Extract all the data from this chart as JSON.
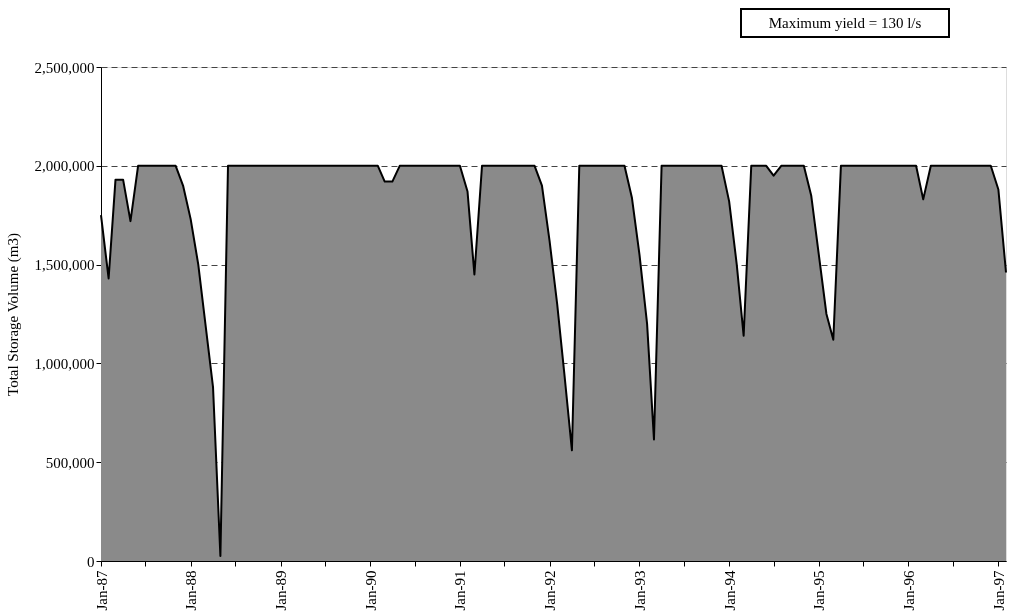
{
  "chart_data": {
    "type": "area",
    "ylabel": "Total Storage Volume (m3)",
    "annotations": [
      "Maximum yield = 130 l/s"
    ],
    "x": [
      "1987-01",
      "1987-02",
      "1987-03",
      "1987-04",
      "1987-05",
      "1987-06",
      "1987-07",
      "1987-08",
      "1987-09",
      "1987-10",
      "1987-11",
      "1987-12",
      "1988-01",
      "1988-02",
      "1988-03",
      "1988-04",
      "1988-05",
      "1988-06",
      "1988-07",
      "1988-08",
      "1988-09",
      "1988-10",
      "1988-11",
      "1988-12",
      "1989-01",
      "1989-02",
      "1989-03",
      "1989-04",
      "1989-05",
      "1989-06",
      "1989-07",
      "1989-08",
      "1989-09",
      "1989-10",
      "1989-11",
      "1989-12",
      "1990-01",
      "1990-02",
      "1990-03",
      "1990-04",
      "1990-05",
      "1990-06",
      "1990-07",
      "1990-08",
      "1990-09",
      "1990-10",
      "1990-11",
      "1990-12",
      "1991-01",
      "1991-02",
      "1991-03",
      "1991-04",
      "1991-05",
      "1991-06",
      "1991-07",
      "1991-08",
      "1991-09",
      "1991-10",
      "1991-11",
      "1991-12",
      "1992-01",
      "1992-02",
      "1992-03",
      "1992-04",
      "1992-05",
      "1992-06",
      "1992-07",
      "1992-08",
      "1992-09",
      "1992-10",
      "1992-11",
      "1992-12",
      "1993-01",
      "1993-02",
      "1993-03",
      "1993-04",
      "1993-05",
      "1993-06",
      "1993-07",
      "1993-08",
      "1993-09",
      "1993-10",
      "1993-11",
      "1993-12",
      "1994-01",
      "1994-02",
      "1994-03",
      "1994-04",
      "1994-05",
      "1994-06",
      "1994-07",
      "1994-08",
      "1994-09",
      "1994-10",
      "1994-11",
      "1994-12",
      "1995-01",
      "1995-02",
      "1995-03",
      "1995-04",
      "1995-05",
      "1995-06",
      "1995-07",
      "1995-08",
      "1995-09",
      "1995-10",
      "1995-11",
      "1995-12",
      "1996-01",
      "1996-02",
      "1996-03",
      "1996-04",
      "1996-05",
      "1996-06",
      "1996-07",
      "1996-08",
      "1996-09",
      "1996-10",
      "1996-11",
      "1996-12",
      "1997-01",
      "1997-02"
    ],
    "series": [
      {
        "color": "#8a8a8a",
        "values": [
          1750000,
          1430000,
          1930000,
          1930000,
          1720000,
          2000000,
          2000000,
          2000000,
          2000000,
          2000000,
          2000000,
          1900000,
          1730000,
          1500000,
          1200000,
          880000,
          25000,
          2000000,
          2000000,
          2000000,
          2000000,
          2000000,
          2000000,
          2000000,
          2000000,
          2000000,
          2000000,
          2000000,
          2000000,
          2000000,
          2000000,
          2000000,
          2000000,
          2000000,
          2000000,
          2000000,
          2000000,
          2000000,
          1920000,
          1920000,
          2000000,
          2000000,
          2000000,
          2000000,
          2000000,
          2000000,
          2000000,
          2000000,
          2000000,
          1870000,
          1450000,
          2000000,
          2000000,
          2000000,
          2000000,
          2000000,
          2000000,
          2000000,
          2000000,
          1900000,
          1620000,
          1300000,
          950000,
          560000,
          2000000,
          2000000,
          2000000,
          2000000,
          2000000,
          2000000,
          2000000,
          1840000,
          1550000,
          1200000,
          615000,
          2000000,
          2000000,
          2000000,
          2000000,
          2000000,
          2000000,
          2000000,
          2000000,
          2000000,
          1820000,
          1500000,
          1140000,
          2000000,
          2000000,
          2000000,
          1950000,
          2000000,
          2000000,
          2000000,
          2000000,
          1850000,
          1550000,
          1250000,
          1120000,
          2000000,
          2000000,
          2000000,
          2000000,
          2000000,
          2000000,
          2000000,
          2000000,
          2000000,
          2000000,
          2000000,
          1830000,
          2000000,
          2000000,
          2000000,
          2000000,
          2000000,
          2000000,
          2000000,
          2000000,
          2000000,
          1880000,
          1460000
        ]
      }
    ],
    "xlim": [
      "1987-01",
      "1997-02"
    ],
    "xticks": [
      {
        "value": "1987-01",
        "label": "Jan-87"
      },
      {
        "value": "1987-07",
        "label": null
      },
      {
        "value": "1988-01",
        "label": "Jan-88"
      },
      {
        "value": "1988-07",
        "label": null
      },
      {
        "value": "1989-01",
        "label": "Jan-89"
      },
      {
        "value": "1989-07",
        "label": null
      },
      {
        "value": "1990-01",
        "label": "Jan-90"
      },
      {
        "value": "1990-07",
        "label": null
      },
      {
        "value": "1991-01",
        "label": "Jan-91"
      },
      {
        "value": "1991-07",
        "label": null
      },
      {
        "value": "1992-01",
        "label": "Jan-92"
      },
      {
        "value": "1992-07",
        "label": null
      },
      {
        "value": "1993-01",
        "label": "Jan-93"
      },
      {
        "value": "1993-07",
        "label": null
      },
      {
        "value": "1994-01",
        "label": "Jan-94"
      },
      {
        "value": "1994-07",
        "label": null
      },
      {
        "value": "1995-01",
        "label": "Jan-95"
      },
      {
        "value": "1995-07",
        "label": null
      },
      {
        "value": "1996-01",
        "label": "Jan-96"
      },
      {
        "value": "1996-07",
        "label": null
      },
      {
        "value": "1997-01",
        "label": "Jan-97"
      }
    ],
    "ylim": [
      0,
      2500000
    ],
    "yticks": [
      0,
      {
        "value": 500000,
        "label": "500,000"
      },
      {
        "value": 1000000,
        "label": "1,000,000"
      },
      {
        "value": 1500000,
        "label": "1,500,000"
      },
      {
        "value": 2000000,
        "label": "2,000,000"
      },
      {
        "value": 2500000,
        "label": "2,500,000"
      }
    ],
    "grid": "y"
  }
}
